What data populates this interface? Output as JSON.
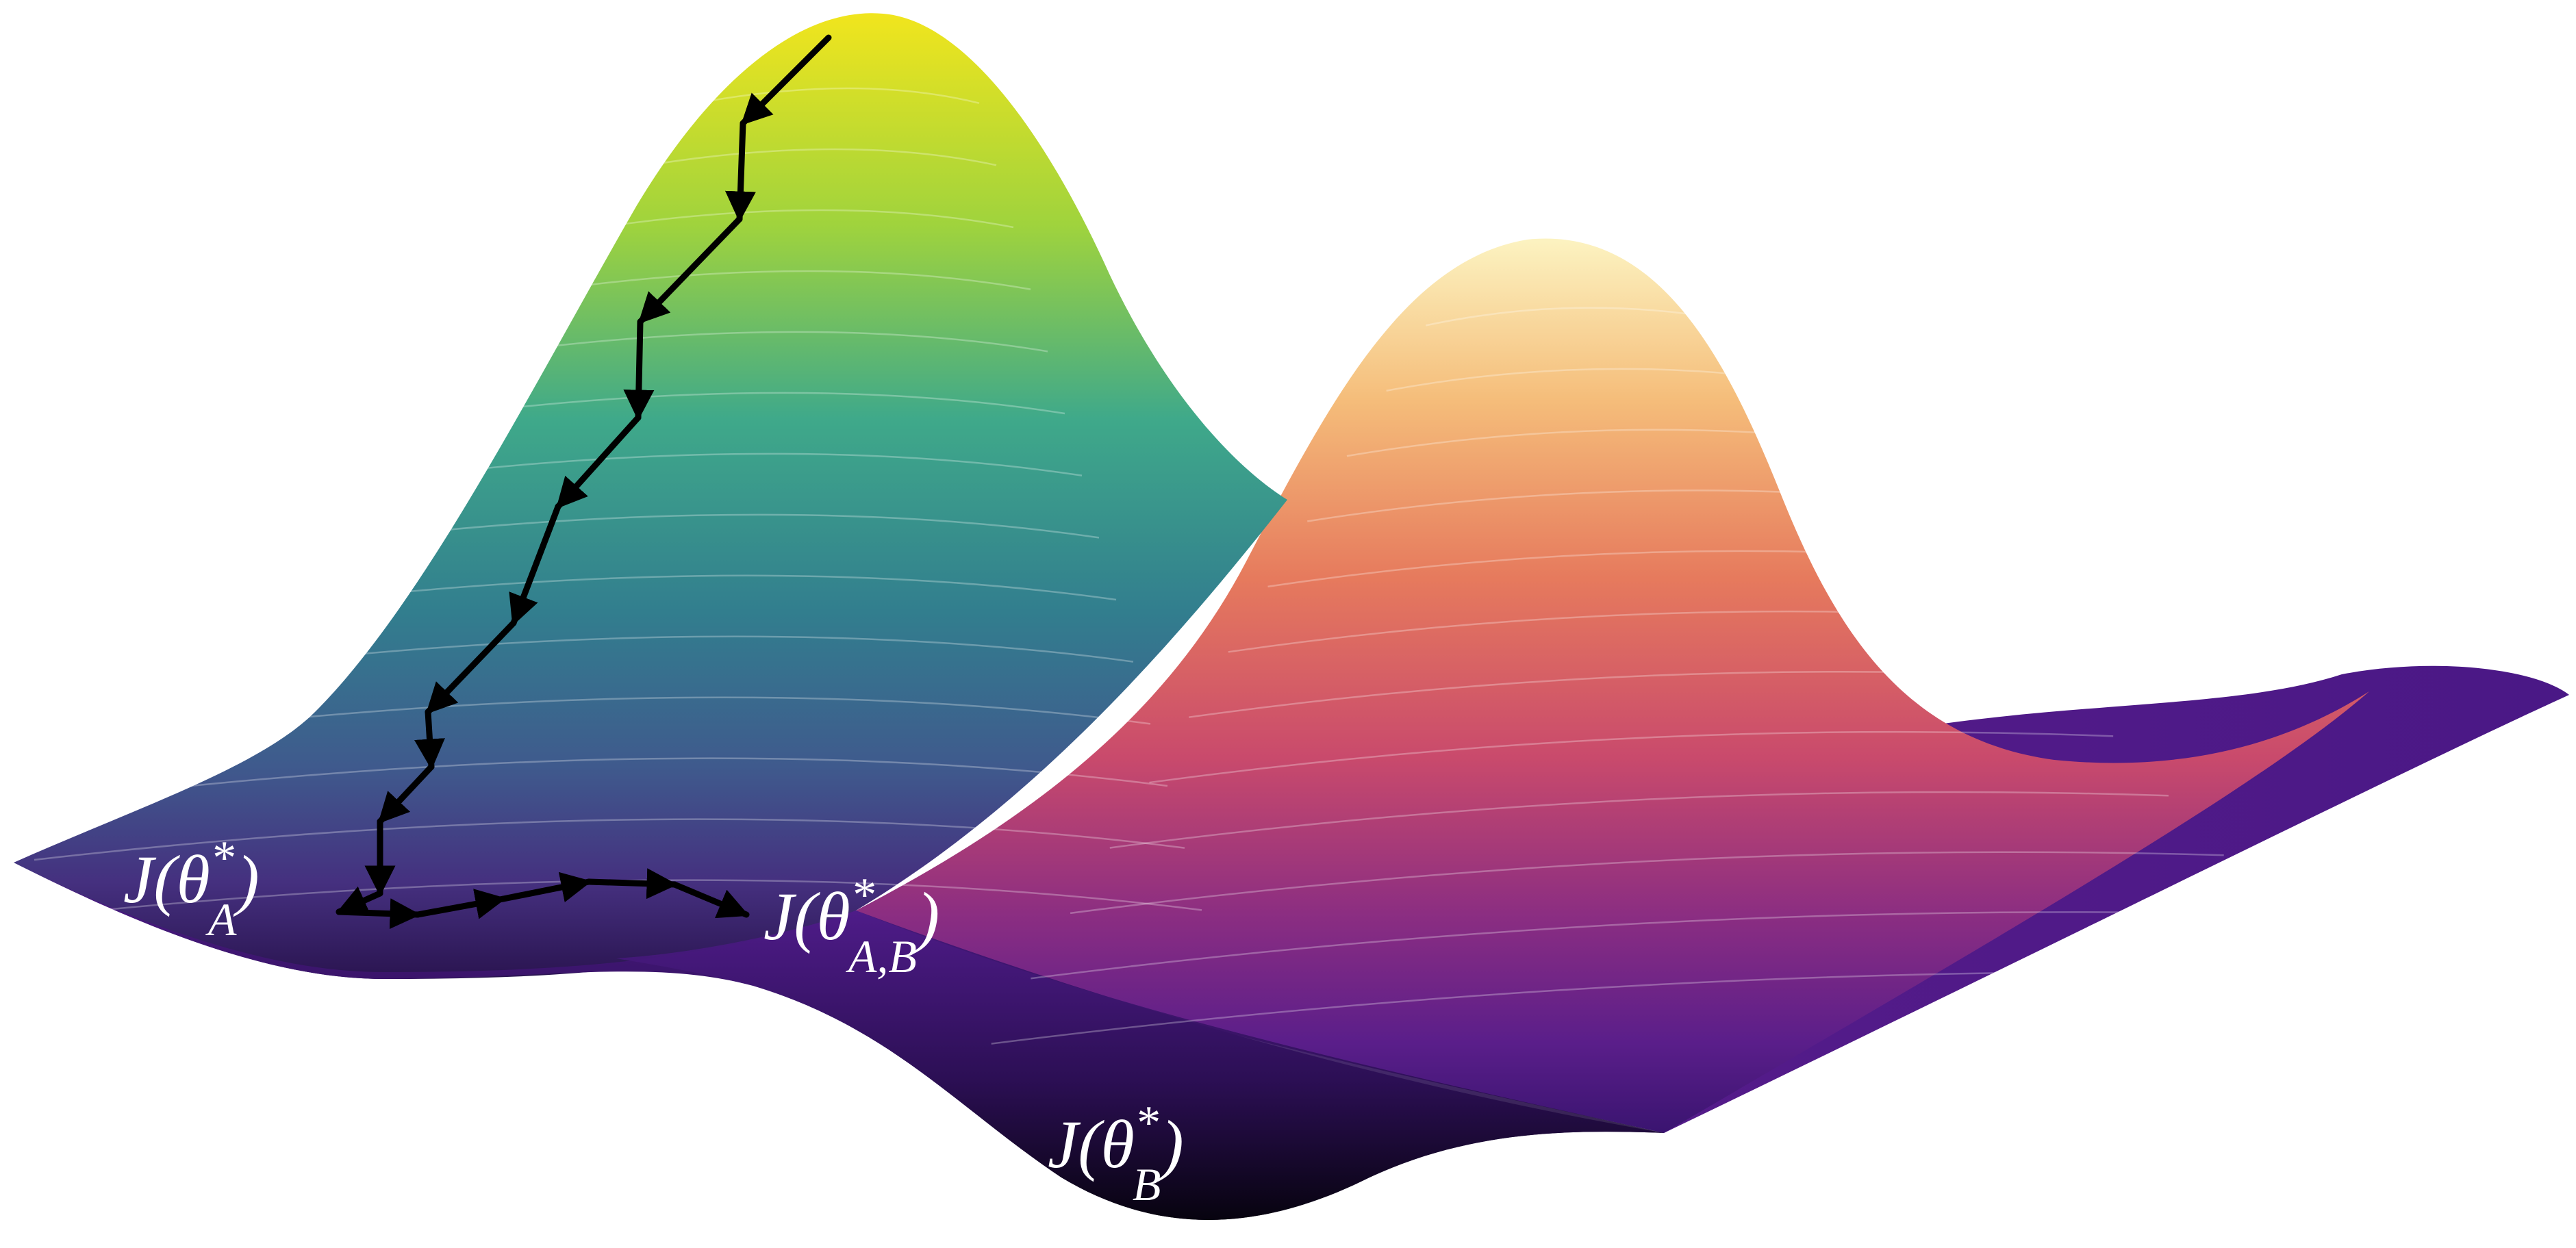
{
  "labels": {
    "theta_a": {
      "base": "J(θ",
      "sup": "*",
      "sub": "A",
      "close": ")"
    },
    "theta_ab": {
      "base": "J(θ",
      "sup": "*",
      "sub": "A,B",
      "close": ")"
    },
    "theta_b": {
      "base": "J(θ",
      "sup": "*",
      "sub": "B",
      "close": ")"
    }
  },
  "colors": {
    "surface_a_peak": "#f1e51d",
    "surface_a_mid": "#3b8a8c",
    "surface_a_base": "#3d2a7a",
    "surface_b_peak": "#fcf3c1",
    "surface_b_mid": "#e2605a",
    "surface_b_base": "#4b1a84",
    "valley": "#0b0620",
    "path": "#000000"
  },
  "descent_path_steps": 16
}
